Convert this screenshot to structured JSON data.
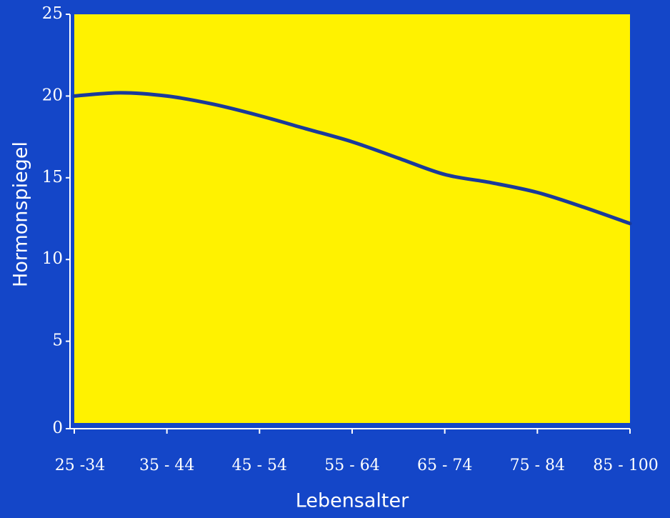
{
  "chart_data": {
    "type": "line",
    "xlabel": "Lebensalter",
    "ylabel": "Hormonspiegel",
    "categories": [
      "25 -34",
      "35 - 44",
      "45 - 54",
      "55 - 64",
      "65 - 74",
      "75 - 84",
      "85 - 100"
    ],
    "ylim": [
      0,
      25
    ],
    "yticks": [
      0,
      5,
      10,
      15,
      20,
      25
    ],
    "series": [
      {
        "x": [
          0,
          0.5,
          1,
          1.5,
          2,
          2.5,
          3,
          3.5,
          4,
          4.5,
          5,
          5.5,
          6
        ],
        "values": [
          20.0,
          20.2,
          20.0,
          19.5,
          18.8,
          18.0,
          17.2,
          16.2,
          15.2,
          14.7,
          14.1,
          13.2,
          12.2
        ]
      }
    ],
    "grid": false,
    "colors": {
      "background": "#1446c8",
      "plot_area": "#fff200",
      "line": "#1a3a9a",
      "text": "#ffffff"
    }
  }
}
